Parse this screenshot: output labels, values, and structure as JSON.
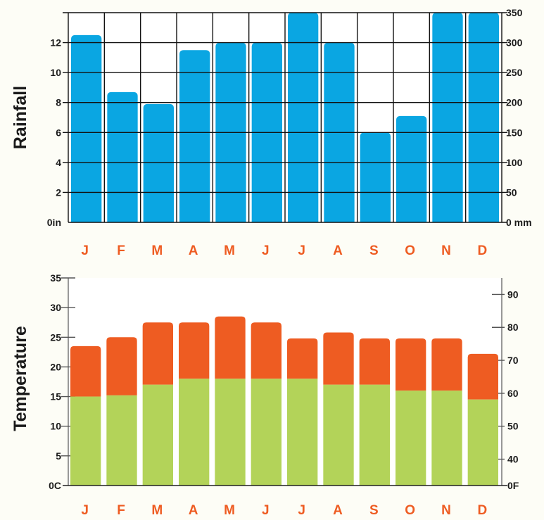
{
  "colors": {
    "rain_bar": "#0aa6e2",
    "temp_low": "#b3d359",
    "temp_high": "#ee5c22",
    "month_label": "#ee5c22",
    "grid": "#111111"
  },
  "chart_data": [
    {
      "type": "bar",
      "categories": [
        "J",
        "F",
        "M",
        "A",
        "M",
        "J",
        "J",
        "A",
        "S",
        "O",
        "N",
        "D"
      ],
      "values": [
        12.5,
        8.7,
        7.9,
        11.5,
        12.0,
        12.0,
        14.0,
        12.0,
        6.0,
        7.1,
        14.0,
        14.0
      ],
      "ylabel": "Rainfall",
      "ylim": [
        0,
        14
      ],
      "left_ticks": [
        "0in",
        "2",
        "4",
        "6",
        "8",
        "10",
        "12"
      ],
      "right_ticks": [
        "0 mm",
        "50",
        "100",
        "150",
        "200",
        "250",
        "300",
        "350"
      ],
      "grid": true
    },
    {
      "type": "bar",
      "categories": [
        "J",
        "F",
        "M",
        "A",
        "M",
        "J",
        "J",
        "A",
        "S",
        "O",
        "N",
        "D"
      ],
      "series": [
        {
          "values": [
            15.0,
            15.2,
            17.0,
            18.0,
            18.0,
            18.0,
            18.0,
            17.0,
            17.0,
            16.0,
            16.0,
            14.5
          ]
        },
        {
          "values": [
            23.5,
            25.0,
            27.5,
            27.5,
            28.5,
            27.5,
            24.8,
            25.8,
            24.8,
            24.8,
            24.8,
            22.2
          ]
        }
      ],
      "ylabel": "Temperature",
      "ylim": [
        0,
        35
      ],
      "left_ticks": [
        "0C",
        "5",
        "10",
        "15",
        "20",
        "25",
        "30",
        "35"
      ],
      "right_ticks": [
        "0F",
        "40",
        "50",
        "60",
        "70",
        "80",
        "90"
      ],
      "grid": false
    }
  ]
}
